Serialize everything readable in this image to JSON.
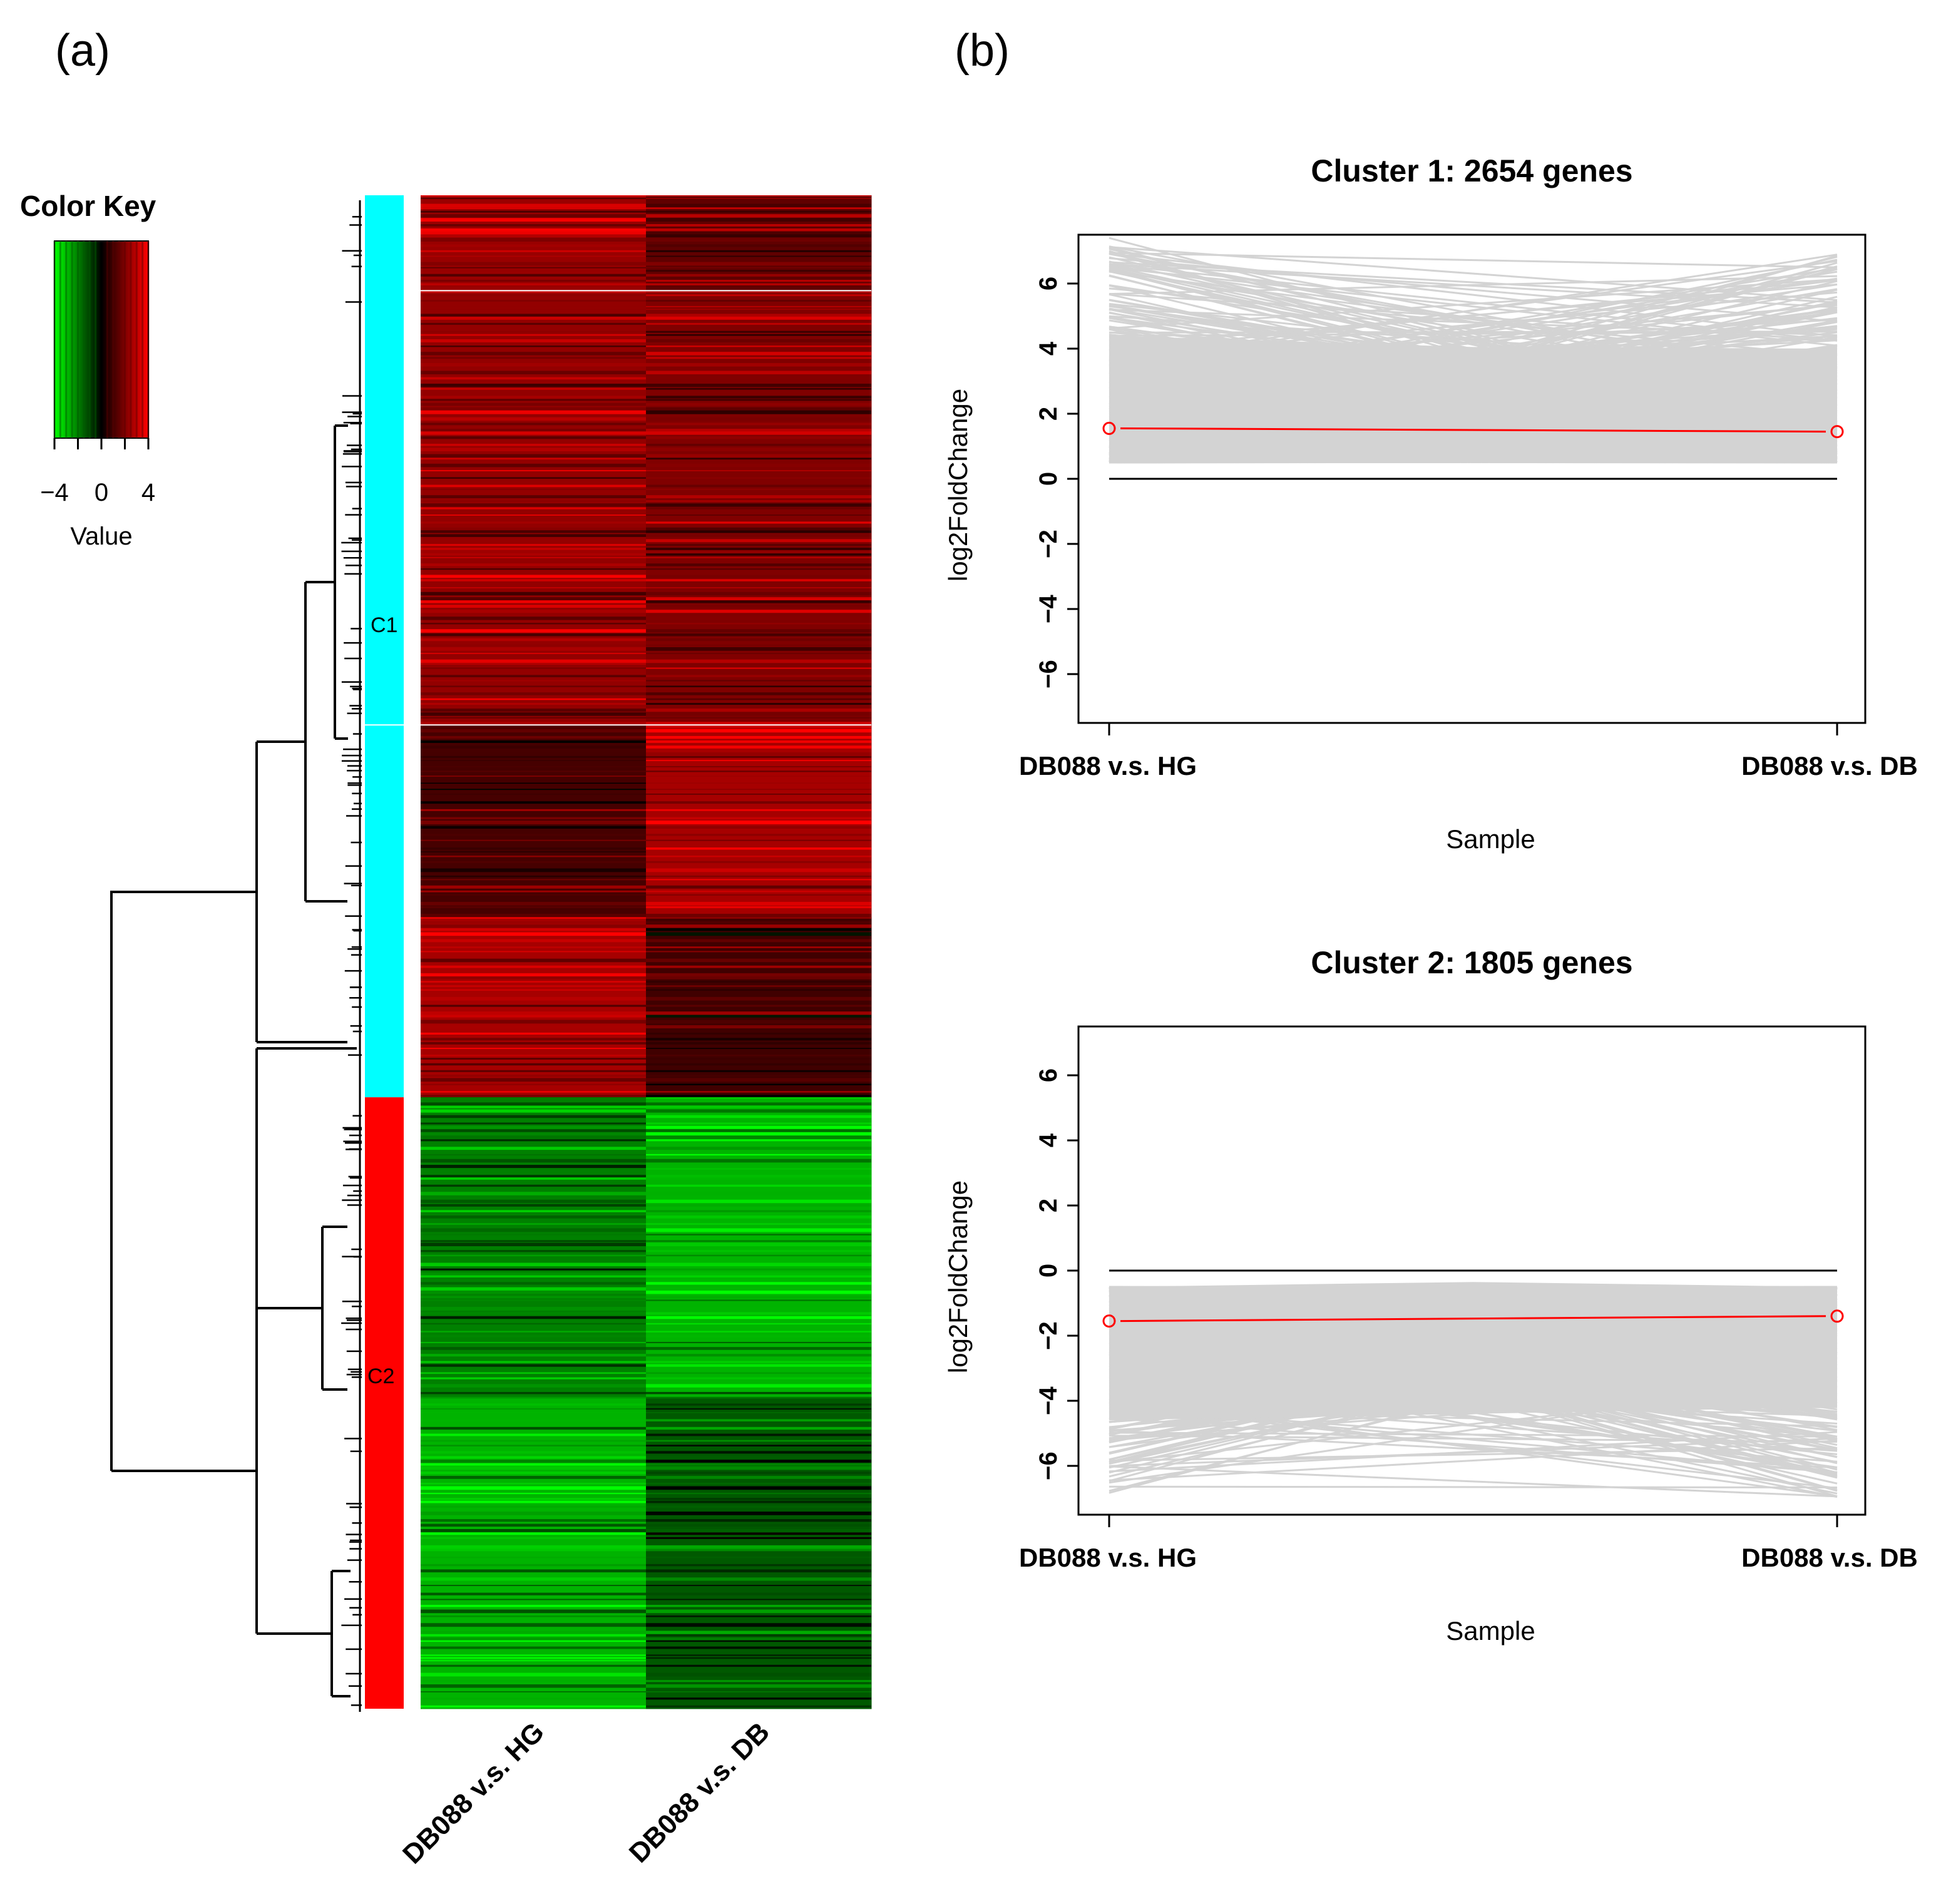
{
  "panels": {
    "a_label": "(a)",
    "b_label": "(b)"
  },
  "colors": {
    "green": "#00ff00",
    "black": "#000000",
    "red": "#ff0000",
    "cyan": "#00ffff",
    "gray_line": "#d3d3d3",
    "mean_line": "#ff0000"
  },
  "chart_data": [
    {
      "type": "heatmap",
      "title": "Color Key",
      "key": {
        "ticks": [
          -4,
          0,
          4
        ],
        "tick_labels": [
          "−4",
          "0",
          "4"
        ],
        "label": "Value",
        "range": [
          -4,
          4
        ]
      },
      "columns": [
        "DB088 v.s. HG",
        "DB088 v.s. DB"
      ],
      "clusters": [
        {
          "name": "C1",
          "color": "#00ffff"
        },
        {
          "name": "C2",
          "color": "#ff0000"
        }
      ],
      "row_blocks": [
        {
          "fraction": 0.063,
          "values": [
            2.4,
            1.5
          ]
        },
        {
          "fraction": 0.287,
          "values": [
            2.3,
            2.0
          ]
        },
        {
          "fraction": 0.127,
          "values": [
            1.1,
            2.6
          ]
        },
        {
          "fraction": 0.119,
          "values": [
            2.6,
            1.0
          ]
        },
        {
          "fraction": 0.198,
          "values": [
            -2.0,
            -2.8
          ]
        },
        {
          "fraction": 0.206,
          "values": [
            -2.8,
            -1.4
          ]
        }
      ]
    },
    {
      "type": "line",
      "title": "Cluster 1: 2654 genes",
      "xlabel": "Sample",
      "ylabel": "log2FoldChange",
      "categories": [
        "DB088 v.s. HG",
        "DB088 v.s. DB"
      ],
      "ylim": [
        -7.5,
        7.5
      ],
      "yticks": [
        -6,
        -4,
        -2,
        0,
        2,
        4,
        6
      ],
      "ytick_labels": [
        "−6",
        "−4",
        "−2",
        "0",
        "2",
        "4",
        "6"
      ],
      "gene_band": {
        "lower": [
          0.5,
          0.5
        ],
        "upper": [
          7.4,
          6.9
        ]
      },
      "mean": [
        1.55,
        1.45
      ],
      "hline": 0
    },
    {
      "type": "line",
      "title": "Cluster 2: 1805 genes",
      "xlabel": "Sample",
      "ylabel": "log2FoldChange",
      "categories": [
        "DB088 v.s. HG",
        "DB088 v.s. DB"
      ],
      "ylim": [
        -7.5,
        7.5
      ],
      "yticks": [
        -6,
        -4,
        -2,
        0,
        2,
        4,
        6
      ],
      "ytick_labels": [
        "−6",
        "−4",
        "−2",
        "0",
        "2",
        "4",
        "6"
      ],
      "gene_band": {
        "lower": [
          -6.9,
          -7.0
        ],
        "upper": [
          -0.5,
          -0.5
        ]
      },
      "mean": [
        -1.55,
        -1.4
      ],
      "hline": 0
    }
  ]
}
